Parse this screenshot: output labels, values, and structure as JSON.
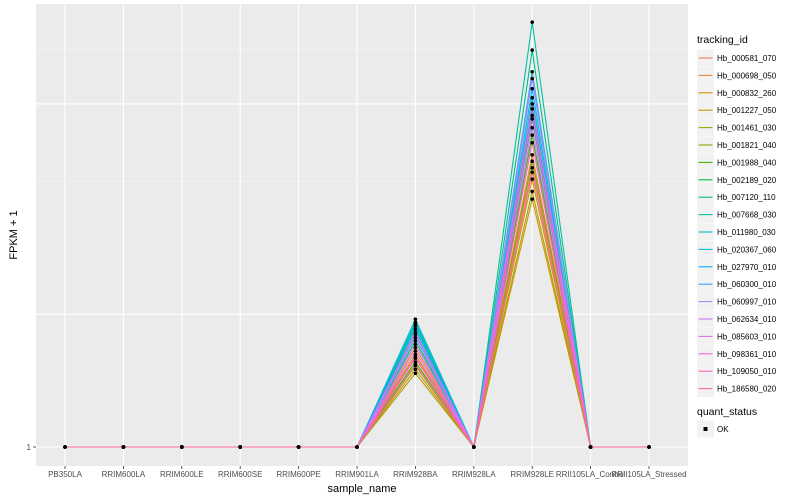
{
  "chart_data": {
    "type": "line",
    "xlabel": "sample_name",
    "ylabel": "FPKM + 1",
    "categories": [
      "PB350LA",
      "RRIM600LA",
      "RRIM600LE",
      "RRIM600SE",
      "RRIM600PE",
      "RRIM901LA",
      "RRIM928BA",
      "RRIM928LA",
      "RRIM928LE",
      "RRII105LA_Control",
      "RRII105LA_Stressed"
    ],
    "y_ticks": [
      {
        "value": 1,
        "label": "1"
      }
    ],
    "y_scale": "log",
    "grid": true,
    "legend": {
      "placement": "right",
      "color_title": "tracking_id",
      "shape_title": "quant_status",
      "shape_entries": [
        "OK"
      ]
    },
    "series": [
      {
        "name": "Hb_000581_070",
        "color": "#F8766D",
        "values": [
          1,
          1,
          1,
          1,
          1,
          1,
          1.59,
          1,
          4.3,
          1,
          1
        ]
      },
      {
        "name": "Hb_000698_050",
        "color": "#EA8331",
        "values": [
          1,
          1,
          1,
          1,
          1,
          1,
          1.68,
          1,
          4.6,
          1,
          1
        ]
      },
      {
        "name": "Hb_000832_260",
        "color": "#D89000",
        "values": [
          1,
          1,
          1,
          1,
          1,
          1,
          1.5,
          1,
          3.65,
          1,
          1
        ]
      },
      {
        "name": "Hb_001227_050",
        "color": "#C09B00",
        "values": [
          1,
          1,
          1,
          1,
          1,
          1,
          1.62,
          1,
          4.05,
          1,
          1
        ]
      },
      {
        "name": "Hb_001461_030",
        "color": "#A3A500",
        "values": [
          1,
          1,
          1,
          1,
          1,
          1,
          1.47,
          1,
          3.8,
          1,
          1
        ]
      },
      {
        "name": "Hb_001821_040",
        "color": "#7CAE00",
        "values": [
          1,
          1,
          1,
          1,
          1,
          1,
          1.53,
          1,
          4.45,
          1,
          1
        ]
      },
      {
        "name": "Hb_001988_040",
        "color": "#39B600",
        "values": [
          1,
          1,
          1,
          1,
          1,
          1,
          1.56,
          1,
          5.1,
          1,
          1
        ]
      },
      {
        "name": "Hb_002189_020",
        "color": "#00BB4E",
        "values": [
          1,
          1,
          1,
          1,
          1,
          1,
          1.74,
          1,
          5.55,
          1,
          1
        ]
      },
      {
        "name": "Hb_007120_110",
        "color": "#00BF7D",
        "values": [
          1,
          1,
          1,
          1,
          1,
          1,
          1.85,
          1,
          7.95,
          1,
          1
        ]
      },
      {
        "name": "Hb_007668_030",
        "color": "#00C1A3",
        "values": [
          1,
          1,
          1,
          1,
          1,
          1,
          1.92,
          1,
          9.2,
          1,
          1
        ]
      },
      {
        "name": "Hb_011980_030",
        "color": "#00BFC4",
        "values": [
          1,
          1,
          1,
          1,
          1,
          1,
          1.95,
          1,
          6.2,
          1,
          1
        ]
      },
      {
        "name": "Hb_020367_060",
        "color": "#00BAE0",
        "values": [
          1,
          1,
          1,
          1,
          1,
          1,
          1.9,
          1,
          6.5,
          1,
          1
        ]
      },
      {
        "name": "Hb_027970_010",
        "color": "#00B0F6",
        "values": [
          1,
          1,
          1,
          1,
          1,
          1,
          1.88,
          1,
          5.85,
          1,
          1
        ]
      },
      {
        "name": "Hb_060300_010",
        "color": "#35A2FF",
        "values": [
          1,
          1,
          1,
          1,
          1,
          1,
          1.8,
          1,
          7.1,
          1,
          1
        ]
      },
      {
        "name": "Hb_060997_010",
        "color": "#9590FF",
        "values": [
          1,
          1,
          1,
          1,
          1,
          1,
          1.77,
          1,
          6.85,
          1,
          1
        ]
      },
      {
        "name": "Hb_062634_010",
        "color": "#C77CFF",
        "values": [
          1,
          1,
          1,
          1,
          1,
          1,
          1.71,
          1,
          5.3,
          1,
          1
        ]
      },
      {
        "name": "Hb_085603_010",
        "color": "#E76BF3",
        "values": [
          1,
          1,
          1,
          1,
          1,
          1,
          1.82,
          1,
          6.0,
          1,
          1
        ]
      },
      {
        "name": "Hb_098361_010",
        "color": "#FA62DB",
        "values": [
          1,
          1,
          1,
          1,
          1,
          1,
          1.65,
          1,
          5.65,
          1,
          1
        ]
      },
      {
        "name": "Hb_109050_010",
        "color": "#FF62BC",
        "values": [
          1,
          1,
          1,
          1,
          1,
          1,
          1.6,
          1,
          4.9,
          1,
          1
        ]
      },
      {
        "name": "Hb_186580_020",
        "color": "#FF6C91",
        "values": [
          1,
          1,
          1,
          1,
          1,
          1,
          1.54,
          1,
          4.2,
          1,
          1
        ]
      }
    ]
  }
}
